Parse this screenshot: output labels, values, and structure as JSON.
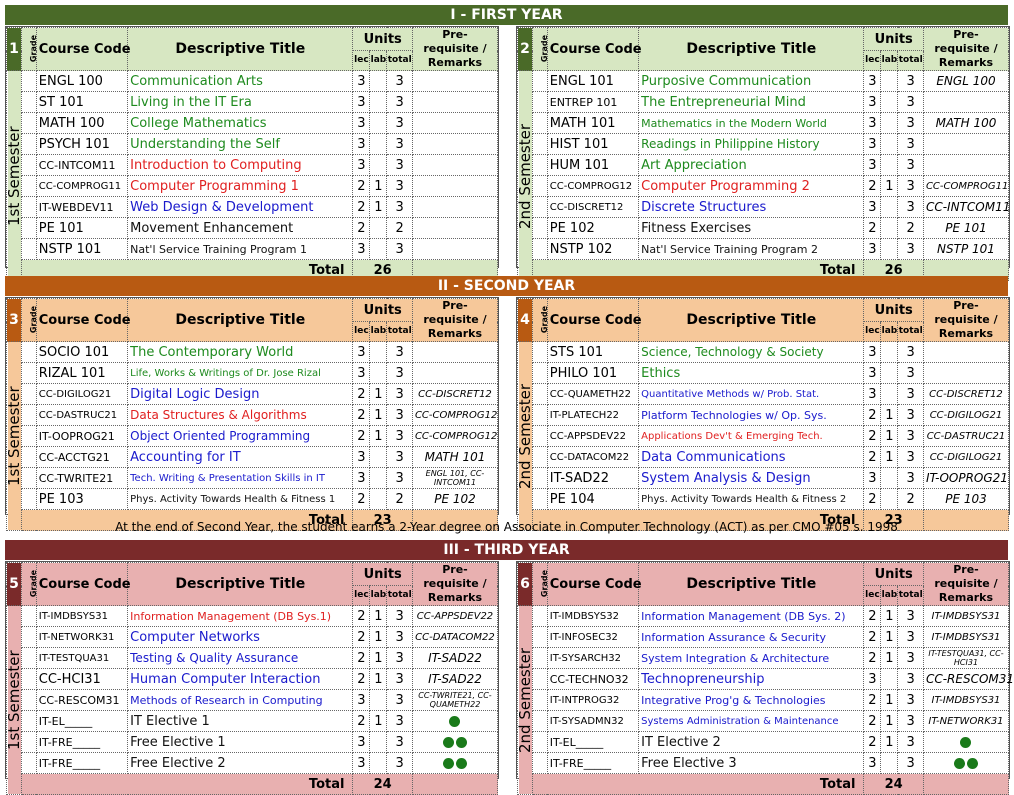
{
  "colors": {
    "year1": "#4a6a28",
    "year1_light": "#d7e7c2",
    "year2": "#b85a12",
    "year2_light": "#f6c89a",
    "year3": "#7a2a2a",
    "year3_light": "#e8b0b0"
  },
  "headers": {
    "grade": "Grade",
    "course_code": "Course Code",
    "descriptive_title": "Descriptive Title",
    "units": "Units",
    "lec": "lec",
    "lab": "lab",
    "total": "total",
    "prereq_1": "Pre-requisite /",
    "prereq_2": "Remarks",
    "total_label": "Total"
  },
  "note": "At the end of Second Year, the student earns a 2-Year degree on Associate in Computer Technology (ACT) as per CMO #05 s. 1998",
  "years": [
    {
      "title": "I - FIRST YEAR",
      "semesters": [
        {
          "num": "1",
          "label": "1st Semester",
          "total": "26",
          "rows": [
            {
              "code": "ENGL 100",
              "title": "Communication Arts",
              "color": "green",
              "lec": "3",
              "lab": "",
              "tot": "3",
              "pre": ""
            },
            {
              "code": "ST 101",
              "title": "Living in the IT Era",
              "color": "green",
              "lec": "3",
              "lab": "",
              "tot": "3",
              "pre": ""
            },
            {
              "code": "MATH 100",
              "title": "College Mathematics",
              "color": "green",
              "lec": "3",
              "lab": "",
              "tot": "3",
              "pre": ""
            },
            {
              "code": "PSYCH 101",
              "title": "Understanding the Self",
              "color": "green",
              "lec": "3",
              "lab": "",
              "tot": "3",
              "pre": ""
            },
            {
              "code": "CC-INTCOM11",
              "title": "Introduction to Computing",
              "color": "red",
              "lec": "3",
              "lab": "",
              "tot": "3",
              "pre": ""
            },
            {
              "code": "CC-COMPROG11",
              "title": "Computer Programming 1",
              "color": "red",
              "lec": "2",
              "lab": "1",
              "tot": "3",
              "pre": ""
            },
            {
              "code": "IT-WEBDEV11",
              "title": "Web Design & Development",
              "color": "blue",
              "lec": "2",
              "lab": "1",
              "tot": "3",
              "pre": ""
            },
            {
              "code": "PE 101",
              "title": "Movement Enhancement",
              "color": "black",
              "lec": "2",
              "lab": "",
              "tot": "2",
              "pre": ""
            },
            {
              "code": "NSTP 101",
              "title": "Nat'l Service Training Program 1",
              "color": "black",
              "lec": "3",
              "lab": "",
              "tot": "3",
              "pre": ""
            }
          ]
        },
        {
          "num": "2",
          "label": "2nd Semester",
          "total": "26",
          "rows": [
            {
              "code": "ENGL 101",
              "title": "Purposive Communication",
              "color": "green",
              "lec": "3",
              "lab": "",
              "tot": "3",
              "pre": "ENGL 100"
            },
            {
              "code": "ENTREP 101",
              "title": "The Entrepreneurial Mind",
              "color": "green",
              "lec": "3",
              "lab": "",
              "tot": "3",
              "pre": ""
            },
            {
              "code": "MATH 101",
              "title": "Mathematics in the Modern World",
              "color": "green",
              "lec": "3",
              "lab": "",
              "tot": "3",
              "pre": "MATH 100"
            },
            {
              "code": "HIST 101",
              "title": "Readings in Philippine History",
              "color": "green",
              "lec": "3",
              "lab": "",
              "tot": "3",
              "pre": ""
            },
            {
              "code": "HUM 101",
              "title": "Art Appreciation",
              "color": "green",
              "lec": "3",
              "lab": "",
              "tot": "3",
              "pre": ""
            },
            {
              "code": "CC-COMPROG12",
              "title": "Computer Programming 2",
              "color": "red",
              "lec": "2",
              "lab": "1",
              "tot": "3",
              "pre": "CC-COMPROG11"
            },
            {
              "code": "CC-DISCRET12",
              "title": "Discrete Structures",
              "color": "blue",
              "lec": "3",
              "lab": "",
              "tot": "3",
              "pre": "CC-INTCOM11"
            },
            {
              "code": "PE 102",
              "title": "Fitness Exercises",
              "color": "black",
              "lec": "2",
              "lab": "",
              "tot": "2",
              "pre": "PE 101"
            },
            {
              "code": "NSTP 102",
              "title": "Nat'l Service Training Program 2",
              "color": "black",
              "lec": "3",
              "lab": "",
              "tot": "3",
              "pre": "NSTP 101"
            }
          ]
        }
      ]
    },
    {
      "title": "II - SECOND YEAR",
      "semesters": [
        {
          "num": "3",
          "label": "1st Semester",
          "total": "23",
          "rows": [
            {
              "code": "SOCIO 101",
              "title": "The Contemporary World",
              "color": "green",
              "lec": "3",
              "lab": "",
              "tot": "3",
              "pre": ""
            },
            {
              "code": "RIZAL 101",
              "title": "Life, Works & Writings of Dr. Jose Rizal",
              "color": "green",
              "lec": "3",
              "lab": "",
              "tot": "3",
              "pre": ""
            },
            {
              "code": "CC-DIGILOG21",
              "title": "Digital Logic Design",
              "color": "blue",
              "lec": "2",
              "lab": "1",
              "tot": "3",
              "pre": "CC-DISCRET12"
            },
            {
              "code": "CC-DASTRUC21",
              "title": "Data Structures & Algorithms",
              "color": "red",
              "lec": "2",
              "lab": "1",
              "tot": "3",
              "pre": "CC-COMPROG12"
            },
            {
              "code": "IT-OOPROG21",
              "title": "Object Oriented Programming",
              "color": "blue",
              "lec": "2",
              "lab": "1",
              "tot": "3",
              "pre": "CC-COMPROG12"
            },
            {
              "code": "CC-ACCTG21",
              "title": "Accounting for IT",
              "color": "blue",
              "lec": "3",
              "lab": "",
              "tot": "3",
              "pre": "MATH 101"
            },
            {
              "code": "CC-TWRITE21",
              "title": "Tech. Writing & Presentation Skills in IT",
              "color": "blue",
              "lec": "3",
              "lab": "",
              "tot": "3",
              "pre": "ENGL 101, CC-INTCOM11"
            },
            {
              "code": "PE 103",
              "title": "Phys. Activity Towards Health & Fitness 1",
              "color": "black",
              "lec": "2",
              "lab": "",
              "tot": "2",
              "pre": "PE 102"
            }
          ]
        },
        {
          "num": "4",
          "label": "2nd Semester",
          "total": "23",
          "rows": [
            {
              "code": "STS 101",
              "title": "Science, Technology & Society",
              "color": "green",
              "lec": "3",
              "lab": "",
              "tot": "3",
              "pre": ""
            },
            {
              "code": "PHILO 101",
              "title": "Ethics",
              "color": "green",
              "lec": "3",
              "lab": "",
              "tot": "3",
              "pre": ""
            },
            {
              "code": "CC-QUAMETH22",
              "title": "Quantitative Methods w/ Prob. Stat.",
              "color": "blue",
              "lec": "3",
              "lab": "",
              "tot": "3",
              "pre": "CC-DISCRET12"
            },
            {
              "code": "IT-PLATECH22",
              "title": "Platform Technologies w/ Op. Sys.",
              "color": "blue",
              "lec": "2",
              "lab": "1",
              "tot": "3",
              "pre": "CC-DIGILOG21"
            },
            {
              "code": "CC-APPSDEV22",
              "title": "Applications Dev't & Emerging Tech.",
              "color": "red",
              "lec": "2",
              "lab": "1",
              "tot": "3",
              "pre": "CC-DASTRUC21"
            },
            {
              "code": "CC-DATACOM22",
              "title": "Data Communications",
              "color": "blue",
              "lec": "2",
              "lab": "1",
              "tot": "3",
              "pre": "CC-DIGILOG21"
            },
            {
              "code": "IT-SAD22",
              "title": "System Analysis & Design",
              "color": "blue",
              "lec": "3",
              "lab": "",
              "tot": "3",
              "pre": "IT-OOPROG21"
            },
            {
              "code": "PE 104",
              "title": "Phys. Activity Towards Health & Fitness 2",
              "color": "black",
              "lec": "2",
              "lab": "",
              "tot": "2",
              "pre": "PE 103"
            }
          ]
        }
      ]
    },
    {
      "title": "III - THIRD YEAR",
      "semesters": [
        {
          "num": "5",
          "label": "1st Semester",
          "total": "24",
          "rows": [
            {
              "code": "IT-IMDBSYS31",
              "title": "Information Management (DB Sys.1)",
              "color": "red",
              "lec": "2",
              "lab": "1",
              "tot": "3",
              "pre": "CC-APPSDEV22"
            },
            {
              "code": "IT-NETWORK31",
              "title": "Computer Networks",
              "color": "blue",
              "lec": "2",
              "lab": "1",
              "tot": "3",
              "pre": "CC-DATACOM22"
            },
            {
              "code": "IT-TESTQUA31",
              "title": "Testing & Quality Assurance",
              "color": "blue",
              "lec": "2",
              "lab": "1",
              "tot": "3",
              "pre": "IT-SAD22"
            },
            {
              "code": "CC-HCI31",
              "title": "Human Computer Interaction",
              "color": "blue",
              "lec": "2",
              "lab": "1",
              "tot": "3",
              "pre": "IT-SAD22"
            },
            {
              "code": "CC-RESCOM31",
              "title": "Methods of Research in Computing",
              "color": "blue",
              "lec": "3",
              "lab": "",
              "tot": "3",
              "pre": "CC-TWRITE21, CC-QUAMETH22"
            },
            {
              "code": "IT-EL_____",
              "title": "IT Elective 1",
              "color": "black",
              "lec": "2",
              "lab": "1",
              "tot": "3",
              "pre": "",
              "dots": "1"
            },
            {
              "code": "IT-FRE_____",
              "title": "Free Elective 1",
              "color": "black",
              "lec": "3",
              "lab": "",
              "tot": "3",
              "pre": "",
              "dots": "2"
            },
            {
              "code": "IT-FRE_____",
              "title": "Free Elective 2",
              "color": "black",
              "lec": "3",
              "lab": "",
              "tot": "3",
              "pre": "",
              "dots": "2"
            }
          ]
        },
        {
          "num": "6",
          "label": "2nd Semester",
          "total": "24",
          "rows": [
            {
              "code": "IT-IMDBSYS32",
              "title": "Information Management (DB Sys. 2)",
              "color": "blue",
              "lec": "2",
              "lab": "1",
              "tot": "3",
              "pre": "IT-IMDBSYS31"
            },
            {
              "code": "IT-INFOSEC32",
              "title": "Information Assurance & Security",
              "color": "blue",
              "lec": "2",
              "lab": "1",
              "tot": "3",
              "pre": "IT-IMDBSYS31"
            },
            {
              "code": "IT-SYSARCH32",
              "title": "System Integration & Architecture",
              "color": "blue",
              "lec": "2",
              "lab": "1",
              "tot": "3",
              "pre": "IT-TESTQUA31, CC-HCI31"
            },
            {
              "code": "CC-TECHNO32",
              "title": "Technopreneurship",
              "color": "blue",
              "lec": "3",
              "lab": "",
              "tot": "3",
              "pre": "CC-RESCOM31"
            },
            {
              "code": "IT-INTPROG32",
              "title": "Integrative Prog'g & Technologies",
              "color": "blue",
              "lec": "2",
              "lab": "1",
              "tot": "3",
              "pre": "IT-IMDBSYS31"
            },
            {
              "code": "IT-SYSADMN32",
              "title": "Systems Administration & Maintenance",
              "color": "blue",
              "lec": "2",
              "lab": "1",
              "tot": "3",
              "pre": "IT-NETWORK31"
            },
            {
              "code": "IT-EL_____",
              "title": "IT Elective 2",
              "color": "black",
              "lec": "2",
              "lab": "1",
              "tot": "3",
              "pre": "",
              "dots": "1"
            },
            {
              "code": "IT-FRE_____",
              "title": "Free Elective 3",
              "color": "black",
              "lec": "3",
              "lab": "",
              "tot": "3",
              "pre": "",
              "dots": "2"
            }
          ]
        }
      ]
    }
  ]
}
